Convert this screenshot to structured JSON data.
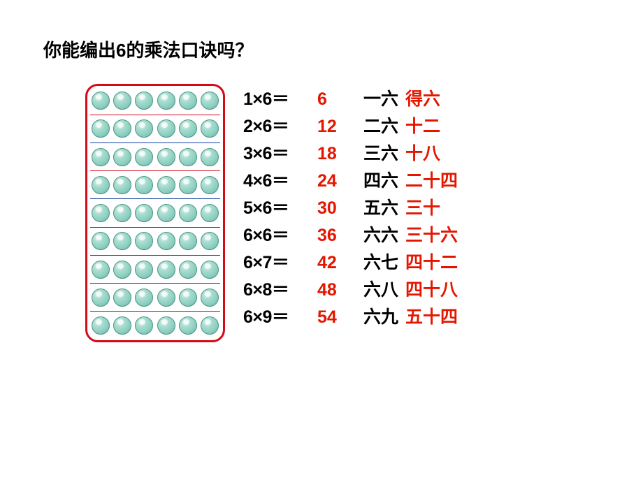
{
  "title": "你能编出6的乘法口诀吗？",
  "colors": {
    "frame_border": "#d40a18",
    "answer_red": "#e51600",
    "text_black": "#000000",
    "bead_fill": "#a8ddd0",
    "sep_red": "#d40a18",
    "sep_blue": "#1040a0"
  },
  "abacus": {
    "rows": 9,
    "beads_per_row": 6,
    "separators": [
      {
        "after_row": 0,
        "color": "#d40a18"
      },
      {
        "after_row": 1,
        "color": "#1040a0"
      },
      {
        "after_row": 2,
        "color": "#d40a18"
      },
      {
        "after_row": 3,
        "color": "#1040a0"
      },
      {
        "after_row": 4,
        "color": "#d40a18"
      },
      {
        "after_row": 5,
        "color": "#1040a0"
      },
      {
        "after_row": 6,
        "color": "#d40a18"
      },
      {
        "after_row": 7,
        "color": "#1040a0"
      }
    ]
  },
  "rows": [
    {
      "expr": "1×6＝",
      "ans": "6",
      "prefix": "一六",
      "suffix": "得六"
    },
    {
      "expr": "2×6＝",
      "ans": "12",
      "prefix": "二六",
      "suffix": "十二"
    },
    {
      "expr": "3×6＝",
      "ans": "18",
      "prefix": "三六",
      "suffix": "十八"
    },
    {
      "expr": "4×6＝",
      "ans": "24",
      "prefix": "四六",
      "suffix": "二十四"
    },
    {
      "expr": "5×6＝",
      "ans": "30",
      "prefix": "五六",
      "suffix": "三十"
    },
    {
      "expr": "6×6＝",
      "ans": "36",
      "prefix": "六六",
      "suffix": "三十六"
    },
    {
      "expr": "6×7＝",
      "ans": "42",
      "prefix": "六七",
      "suffix": "四十二"
    },
    {
      "expr": "6×8＝",
      "ans": "48",
      "prefix": "六八",
      "suffix": "四十八"
    },
    {
      "expr": "6×9＝",
      "ans": "54",
      "prefix": "六九",
      "suffix": "五十四"
    }
  ],
  "typography": {
    "title_fontsize": 26,
    "body_fontsize": 25,
    "font_family": "SimHei / Microsoft YaHei",
    "font_weight": "bold"
  }
}
